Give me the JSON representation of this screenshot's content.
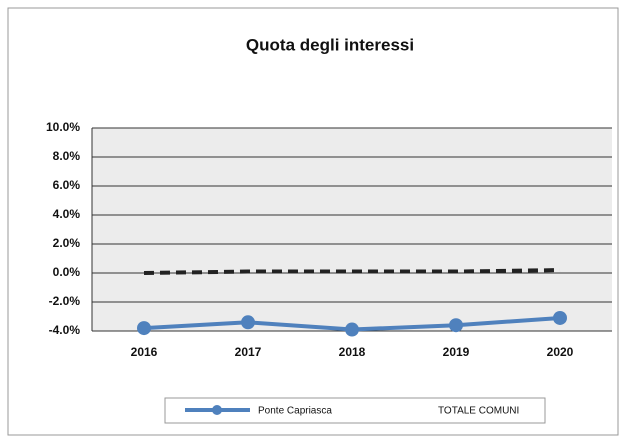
{
  "chart_data": {
    "type": "line",
    "title": "Quota degli interessi",
    "categories": [
      "2016",
      "2017",
      "2018",
      "2019",
      "2020"
    ],
    "series": [
      {
        "name": "Ponte Capriasca",
        "color": "#4f81bd",
        "values": [
          -3.8,
          -3.4,
          -3.9,
          -3.6,
          -3.1
        ]
      },
      {
        "name": "TOTALE COMUNI",
        "color": "#222222",
        "values": [
          0.0,
          0.1,
          0.1,
          0.1,
          0.2
        ]
      }
    ],
    "ylim": [
      -4,
      10
    ],
    "yticks": [
      {
        "value": -4,
        "label": "-4.0%"
      },
      {
        "value": -2,
        "label": "-2.0%"
      },
      {
        "value": 0,
        "label": "0.0%"
      },
      {
        "value": 2,
        "label": "2.0%"
      },
      {
        "value": 4,
        "label": "4.0%"
      },
      {
        "value": 6,
        "label": "6.0%"
      },
      {
        "value": 8,
        "label": "8.0%"
      },
      {
        "value": 10,
        "label": "10.0%"
      }
    ],
    "grid": true,
    "legend": "bottom"
  }
}
